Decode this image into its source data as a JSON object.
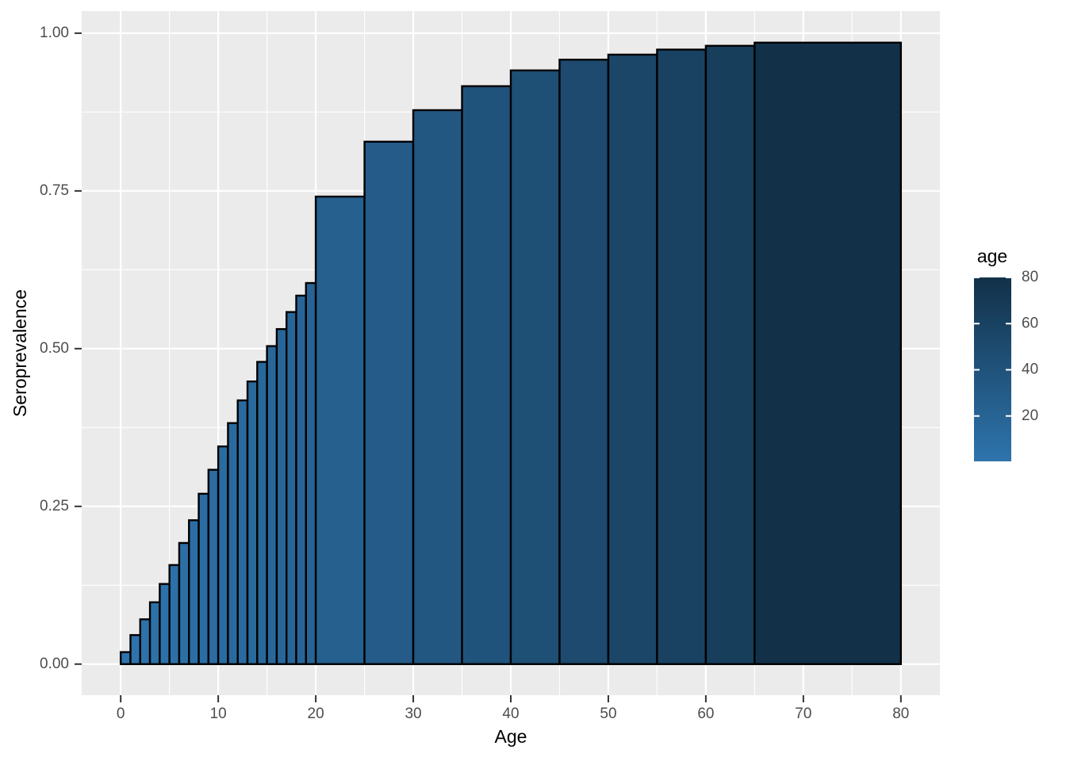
{
  "chart_data": {
    "type": "bar",
    "title": "",
    "xlabel": "Age",
    "ylabel": "Seroprevalence",
    "xlim": [
      -4,
      84
    ],
    "ylim": [
      -0.0493,
      1.035
    ],
    "grid": true,
    "x_major_ticks": [
      0,
      10,
      20,
      30,
      40,
      50,
      60,
      70,
      80
    ],
    "x_tick_labels": [
      "0",
      "10",
      "20",
      "30",
      "40",
      "50",
      "60",
      "70",
      "80"
    ],
    "x_minor_ticks": [
      5,
      15,
      25,
      35,
      45,
      55,
      65,
      75
    ],
    "y_major_ticks": [
      0.0,
      0.25,
      0.5,
      0.75,
      1.0
    ],
    "y_tick_labels": [
      "0.00",
      "0.25",
      "0.50",
      "0.75",
      "1.00"
    ],
    "y_minor_ticks": [
      0.125,
      0.375,
      0.625,
      0.875
    ],
    "bars": [
      {
        "age_lower": 0,
        "age_upper": 1,
        "seroprevalence": 0.019
      },
      {
        "age_lower": 1,
        "age_upper": 2,
        "seroprevalence": 0.046
      },
      {
        "age_lower": 2,
        "age_upper": 3,
        "seroprevalence": 0.071
      },
      {
        "age_lower": 3,
        "age_upper": 4,
        "seroprevalence": 0.098
      },
      {
        "age_lower": 4,
        "age_upper": 5,
        "seroprevalence": 0.127
      },
      {
        "age_lower": 5,
        "age_upper": 6,
        "seroprevalence": 0.157
      },
      {
        "age_lower": 6,
        "age_upper": 7,
        "seroprevalence": 0.192
      },
      {
        "age_lower": 7,
        "age_upper": 8,
        "seroprevalence": 0.228
      },
      {
        "age_lower": 8,
        "age_upper": 9,
        "seroprevalence": 0.27
      },
      {
        "age_lower": 9,
        "age_upper": 10,
        "seroprevalence": 0.308
      },
      {
        "age_lower": 10,
        "age_upper": 11,
        "seroprevalence": 0.345
      },
      {
        "age_lower": 11,
        "age_upper": 12,
        "seroprevalence": 0.382
      },
      {
        "age_lower": 12,
        "age_upper": 13,
        "seroprevalence": 0.418
      },
      {
        "age_lower": 13,
        "age_upper": 14,
        "seroprevalence": 0.448
      },
      {
        "age_lower": 14,
        "age_upper": 15,
        "seroprevalence": 0.479
      },
      {
        "age_lower": 15,
        "age_upper": 16,
        "seroprevalence": 0.504
      },
      {
        "age_lower": 16,
        "age_upper": 17,
        "seroprevalence": 0.531
      },
      {
        "age_lower": 17,
        "age_upper": 18,
        "seroprevalence": 0.558
      },
      {
        "age_lower": 18,
        "age_upper": 19,
        "seroprevalence": 0.584
      },
      {
        "age_lower": 19,
        "age_upper": 20,
        "seroprevalence": 0.604
      },
      {
        "age_lower": 20,
        "age_upper": 25,
        "seroprevalence": 0.741
      },
      {
        "age_lower": 25,
        "age_upper": 30,
        "seroprevalence": 0.828
      },
      {
        "age_lower": 30,
        "age_upper": 35,
        "seroprevalence": 0.878
      },
      {
        "age_lower": 35,
        "age_upper": 40,
        "seroprevalence": 0.916
      },
      {
        "age_lower": 40,
        "age_upper": 45,
        "seroprevalence": 0.941
      },
      {
        "age_lower": 45,
        "age_upper": 50,
        "seroprevalence": 0.958
      },
      {
        "age_lower": 50,
        "age_upper": 55,
        "seroprevalence": 0.966
      },
      {
        "age_lower": 55,
        "age_upper": 60,
        "seroprevalence": 0.974
      },
      {
        "age_lower": 60,
        "age_upper": 65,
        "seroprevalence": 0.98
      },
      {
        "age_lower": 65,
        "age_upper": 80,
        "seroprevalence": 0.985
      }
    ],
    "fill_mapping": {
      "variable": "age",
      "mapped_to": "age_upper",
      "domain": [
        1,
        80
      ],
      "low_color": "#2E74AD",
      "high_color": "#123148"
    },
    "legend": {
      "title": "age",
      "position": "right",
      "tick_values": [
        20,
        40,
        60,
        80
      ],
      "tick_labels": [
        "20",
        "40",
        "60",
        "80"
      ],
      "bar_top_value": 80,
      "bar_bottom_value": 0.35
    },
    "colors": {
      "panel_background": "#EBEBEB",
      "grid_line": "#FFFFFF",
      "bar_outline": "#000000",
      "tick_mark": "#333333",
      "tick_label_text": "#4D4D4D",
      "axis_title_text": "#000000",
      "figure_background": "#FFFFFF"
    }
  }
}
